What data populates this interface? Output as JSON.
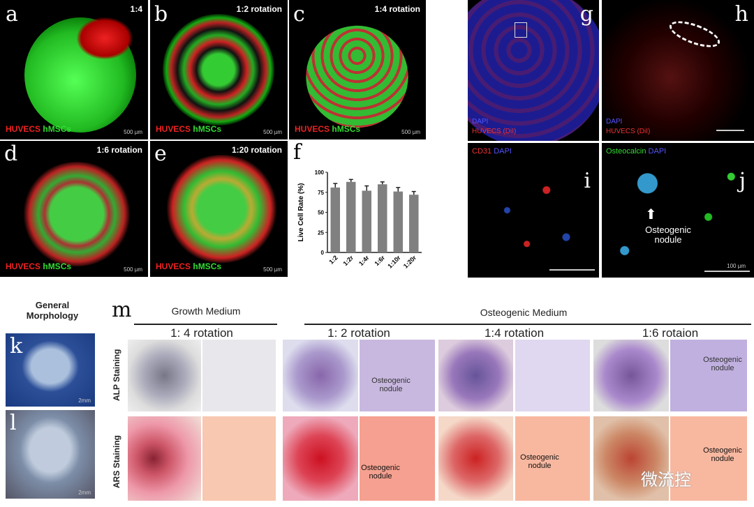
{
  "panels": {
    "a": {
      "letter": "a",
      "ratio": "1:4",
      "legend_red": "HUVECS",
      "legend_green": "hMSCs",
      "scale": "500 µm"
    },
    "b": {
      "letter": "b",
      "ratio": "1:2 rotation",
      "legend_red": "HUVECS",
      "legend_green": "hMSCs",
      "scale": "500 µm"
    },
    "c": {
      "letter": "c",
      "ratio": "1:4 rotation",
      "legend_red": "HUVECS",
      "legend_green": "hMSCs",
      "scale": "500 µm"
    },
    "d": {
      "letter": "d",
      "ratio": "1:6 rotation",
      "legend_red": "HUVECS",
      "legend_green": "hMSCs",
      "scale": "500 µm"
    },
    "e": {
      "letter": "e",
      "ratio": "1:20 rotation",
      "legend_red": "HUVECS",
      "legend_green": "hMSCs",
      "scale": "500 µm"
    },
    "g": {
      "letter": "g",
      "legend_blue": "DAPI",
      "legend_red": "HUVECS (DiI)"
    },
    "h": {
      "letter": "h",
      "legend_blue": "DAPI",
      "legend_red": "HUVECS (DiI)"
    },
    "i": {
      "letter": "i",
      "legend_red": "CD31",
      "legend_blue": "DAPI"
    },
    "j": {
      "letter": "j",
      "legend_green": "Osteocalcin",
      "legend_blue": "DAPI",
      "annotation": "Osteogenic nodule",
      "scale": "100 µm"
    },
    "k": {
      "letter": "k",
      "scale": "2mm"
    },
    "l": {
      "letter": "l",
      "scale": "2mm"
    }
  },
  "morphology_title": "General Morphology",
  "m": {
    "letter": "m",
    "growth_medium": "Growth Medium",
    "osteogenic_medium": "Osteogenic Medium",
    "groups": [
      "1: 4 rotation",
      "1: 2 rotation",
      "1:4 rotation",
      "1:6 rotaion"
    ],
    "rows": [
      "ALP Staining",
      "ARS Staining"
    ],
    "annotation": "Osteogenic nodule"
  },
  "watermark": "微流控",
  "chart_data": {
    "type": "bar",
    "letter": "f",
    "categories": [
      "1:2",
      "1:2r",
      "1:4r",
      "1:6r",
      "1:10r",
      "1:20r"
    ],
    "values": [
      81,
      88,
      77,
      85,
      76,
      72
    ],
    "errors": [
      5,
      3,
      6,
      3,
      5,
      4
    ],
    "ylabel": "Live Cell Rate (%)",
    "ylim": [
      0,
      100
    ],
    "yticks": [
      0,
      25,
      50,
      75,
      100
    ],
    "bar_color": "#808080",
    "grid": false
  }
}
